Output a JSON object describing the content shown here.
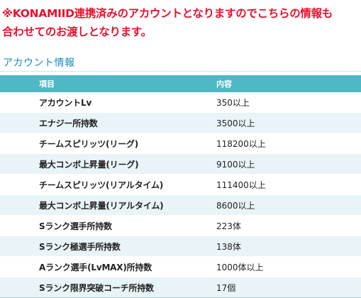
{
  "notice": {
    "line1": "※KONAMIID連携済みのアカウントとなりますのでこちらの情報も",
    "line2": "合わせてのお渡しとなります。"
  },
  "section": {
    "title": "アカウント情報"
  },
  "table": {
    "headers": [
      "項目",
      "内容"
    ],
    "rows": [
      {
        "label": "アカウントLv",
        "value": "350以上"
      },
      {
        "label": "エナジー所持数",
        "value": "3500以上"
      },
      {
        "label": "チームスピリッツ(リーグ)",
        "value": "118200以上"
      },
      {
        "label": "最大コンボ上昇量(リーグ)",
        "value": "9100以上"
      },
      {
        "label": "チームスピリッツ(リアルタイム)",
        "value": "111400以上"
      },
      {
        "label": "最大コンボ上昇量(リアルタイム)",
        "value": "8600以上"
      },
      {
        "label": "Sランク選手所持数",
        "value": "223体"
      },
      {
        "label": "Sランク極選手所持数",
        "value": "138体"
      },
      {
        "label": "Aランク選手(LvMAX)所持数",
        "value": "1000体以上"
      },
      {
        "label": "Sランク限界突破コーチ所持数",
        "value": "17個"
      }
    ]
  },
  "colors": {
    "notice_text": "#e8112d",
    "section_title": "#1c8bb7",
    "header_bg": "#4fb8c6",
    "header_text": "#ffffff",
    "row_alt_bg": "#e8f4f7"
  }
}
